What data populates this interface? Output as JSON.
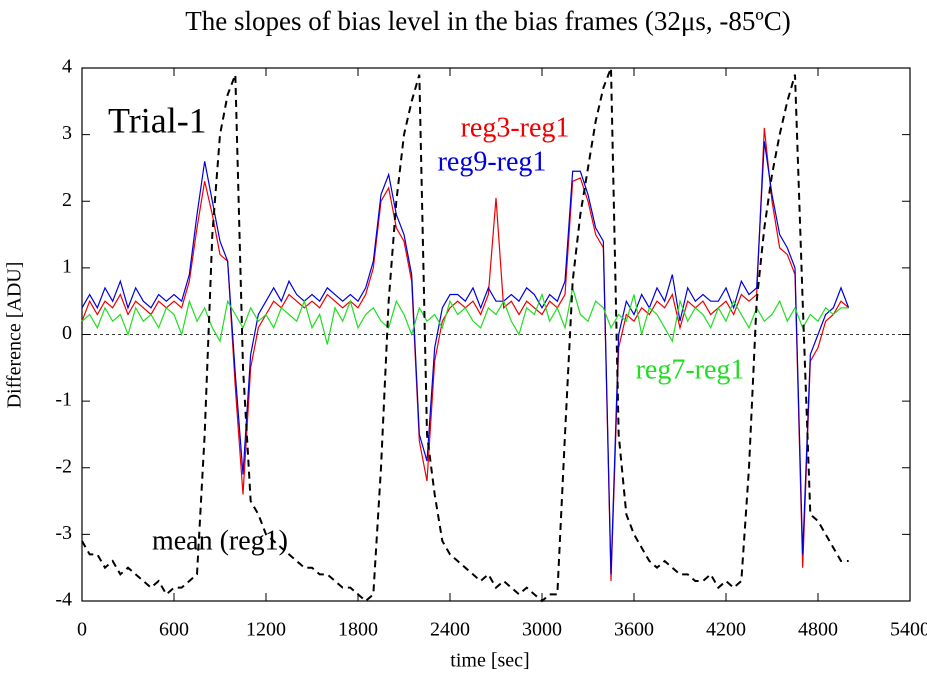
{
  "chart_data": {
    "type": "line",
    "title": "The slopes of bias level in the bias frames (32μs, -85ºC)",
    "x_label": "time [sec]",
    "y_label": "Difference [ADU]",
    "annotation": "Trial-1",
    "reference_line": 0,
    "xlim": [
      0,
      5400
    ],
    "xticks": [
      0,
      600,
      1200,
      1800,
      2400,
      3000,
      3600,
      4200,
      4800,
      5400
    ],
    "ylim": [
      -4,
      4
    ],
    "yticks": [
      -4,
      -3,
      -2,
      -1,
      0,
      1,
      2,
      3,
      4
    ],
    "x": [
      0,
      50,
      100,
      150,
      200,
      250,
      300,
      350,
      400,
      450,
      500,
      550,
      600,
      650,
      700,
      750,
      800,
      850,
      900,
      950,
      1000,
      1050,
      1100,
      1150,
      1200,
      1250,
      1300,
      1350,
      1400,
      1450,
      1500,
      1550,
      1600,
      1650,
      1700,
      1750,
      1800,
      1850,
      1900,
      1950,
      2000,
      2050,
      2100,
      2150,
      2200,
      2250,
      2300,
      2350,
      2400,
      2450,
      2500,
      2550,
      2600,
      2650,
      2700,
      2750,
      2800,
      2850,
      2900,
      2950,
      3000,
      3050,
      3100,
      3150,
      3200,
      3250,
      3300,
      3350,
      3400,
      3450,
      3500,
      3550,
      3600,
      3650,
      3700,
      3750,
      3800,
      3850,
      3900,
      3950,
      4000,
      4050,
      4100,
      4150,
      4200,
      4250,
      4300,
      4350,
      4400,
      4450,
      4500,
      4550,
      4600,
      4650,
      4700,
      4750,
      4800,
      4850,
      4900,
      4950,
      5000
    ],
    "series": [
      {
        "name": "reg3-reg1",
        "color": "#ee0000",
        "dashed": false,
        "values": [
          0.2,
          0.5,
          0.3,
          0.5,
          0.4,
          0.6,
          0.3,
          0.5,
          0.4,
          0.3,
          0.5,
          0.4,
          0.5,
          0.4,
          0.8,
          1.6,
          2.3,
          1.8,
          1.2,
          1.1,
          -0.8,
          -2.4,
          -0.5,
          0.1,
          0.3,
          0.5,
          0.4,
          0.6,
          0.5,
          0.4,
          0.5,
          0.4,
          0.6,
          0.5,
          0.4,
          0.5,
          0.4,
          0.6,
          1.0,
          2.0,
          2.2,
          1.6,
          1.4,
          0.8,
          -1.6,
          -2.2,
          -0.4,
          0.2,
          0.4,
          0.5,
          0.4,
          0.5,
          0.3,
          0.6,
          2.05,
          0.4,
          0.5,
          0.3,
          0.5,
          0.4,
          0.3,
          0.5,
          0.4,
          0.6,
          2.3,
          2.35,
          2.0,
          1.5,
          1.3,
          -3.7,
          -0.2,
          0.3,
          0.2,
          0.4,
          0.3,
          0.5,
          0.4,
          0.6,
          0.1,
          0.5,
          0.4,
          0.5,
          0.3,
          0.4,
          0.5,
          0.3,
          0.6,
          0.5,
          0.6,
          3.1,
          2.0,
          1.3,
          1.2,
          0.9,
          -3.5,
          -0.4,
          -0.2,
          0.2,
          0.3,
          0.5,
          0.4
        ]
      },
      {
        "name": "reg9-reg1",
        "color": "#0000dd",
        "dashed": false,
        "values": [
          0.4,
          0.6,
          0.4,
          0.7,
          0.5,
          0.8,
          0.4,
          0.7,
          0.5,
          0.4,
          0.6,
          0.5,
          0.6,
          0.5,
          0.9,
          1.8,
          2.6,
          2.0,
          1.4,
          1.1,
          -0.6,
          -2.1,
          -0.3,
          0.3,
          0.5,
          0.7,
          0.5,
          0.8,
          0.6,
          0.5,
          0.6,
          0.5,
          0.7,
          0.6,
          0.5,
          0.6,
          0.5,
          0.7,
          1.1,
          2.1,
          2.4,
          1.8,
          1.5,
          0.9,
          -1.5,
          -1.9,
          -0.2,
          0.4,
          0.6,
          0.6,
          0.5,
          0.7,
          0.4,
          0.7,
          0.5,
          0.5,
          0.6,
          0.5,
          0.7,
          0.6,
          0.4,
          0.6,
          0.5,
          0.8,
          2.45,
          2.45,
          2.1,
          1.6,
          1.4,
          -3.6,
          0.0,
          0.5,
          0.3,
          0.6,
          0.4,
          0.7,
          0.5,
          0.9,
          0.2,
          0.7,
          0.5,
          0.6,
          0.5,
          0.5,
          0.7,
          0.4,
          0.8,
          0.6,
          0.7,
          2.9,
          2.1,
          1.5,
          1.3,
          1.0,
          -3.3,
          -0.3,
          0.0,
          0.3,
          0.4,
          0.7,
          0.4
        ]
      },
      {
        "name": "reg7-reg1",
        "color": "#22dd22",
        "dashed": false,
        "values": [
          0.2,
          0.3,
          0.1,
          0.4,
          0.2,
          0.3,
          0.0,
          0.4,
          0.2,
          0.3,
          0.1,
          0.4,
          0.3,
          0.0,
          0.5,
          0.2,
          0.4,
          0.1,
          -0.1,
          0.5,
          0.3,
          0.1,
          0.4,
          0.2,
          0.3,
          0.1,
          0.4,
          0.3,
          0.2,
          0.5,
          0.1,
          0.3,
          -0.15,
          0.4,
          0.2,
          0.5,
          0.1,
          0.3,
          0.4,
          0.2,
          0.1,
          0.5,
          0.3,
          0.0,
          0.4,
          0.2,
          0.3,
          0.1,
          0.5,
          0.3,
          0.4,
          0.2,
          0.1,
          0.4,
          0.3,
          0.5,
          0.2,
          0.0,
          0.4,
          0.3,
          0.6,
          0.2,
          0.4,
          0.1,
          0.7,
          0.3,
          0.2,
          0.5,
          0.4,
          0.1,
          0.3,
          0.2,
          0.6,
          0.0,
          0.4,
          0.3,
          0.1,
          -0.1,
          0.5,
          0.2,
          0.4,
          0.3,
          0.1,
          0.4,
          0.2,
          0.5,
          0.3,
          0.1,
          0.4,
          0.2,
          0.3,
          0.5,
          0.2,
          0.4,
          0.1,
          0.3,
          0.2,
          0.4,
          0.3,
          0.4,
          0.4
        ]
      },
      {
        "name": "mean (reg1)",
        "color": "#000000",
        "dashed": true,
        "values": [
          -3.1,
          -3.3,
          -3.3,
          -3.5,
          -3.4,
          -3.6,
          -3.5,
          -3.6,
          -3.7,
          -3.8,
          -3.7,
          -3.9,
          -3.8,
          -3.8,
          -3.7,
          -3.6,
          -1.5,
          1.5,
          3.0,
          3.6,
          3.9,
          -0.5,
          -2.5,
          -2.7,
          -3.0,
          -3.1,
          -3.2,
          -3.3,
          -3.4,
          -3.5,
          -3.5,
          -3.6,
          -3.6,
          -3.7,
          -3.8,
          -3.8,
          -3.9,
          -4.0,
          -3.9,
          -2.0,
          0.5,
          2.0,
          3.0,
          3.5,
          3.9,
          -1.5,
          -2.4,
          -3.1,
          -3.3,
          -3.4,
          -3.5,
          -3.6,
          -3.7,
          -3.6,
          -3.8,
          -3.7,
          -3.8,
          -3.9,
          -3.8,
          -3.9,
          -4.0,
          -3.9,
          -3.9,
          -1.5,
          0.8,
          1.8,
          2.5,
          3.2,
          3.7,
          4.0,
          -1.5,
          -2.7,
          -3.0,
          -3.2,
          -3.4,
          -3.5,
          -3.4,
          -3.5,
          -3.6,
          -3.6,
          -3.7,
          -3.7,
          -3.6,
          -3.8,
          -3.7,
          -3.8,
          -3.7,
          -2.0,
          0.5,
          1.6,
          2.4,
          3.0,
          3.5,
          3.9,
          0.5,
          -2.7,
          -2.8,
          -3.0,
          -3.2,
          -3.4,
          -3.4
        ]
      }
    ]
  }
}
